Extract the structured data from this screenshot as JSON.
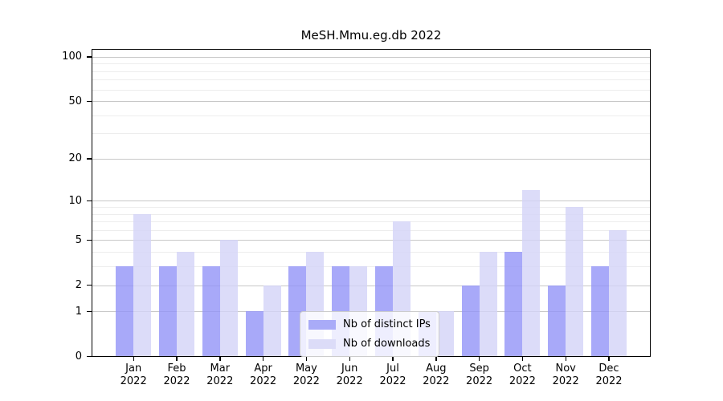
{
  "title": "MeSH.Mmu.eg.db 2022",
  "chart_data": {
    "type": "bar",
    "title": "MeSH.Mmu.eg.db 2022",
    "yscale": "log1p",
    "ylim": [
      0,
      113
    ],
    "grid": "on",
    "legend_position": "lower center inside plot",
    "categories": [
      "Jan",
      "Feb",
      "Mar",
      "Apr",
      "May",
      "Jun",
      "Jul",
      "Aug",
      "Sep",
      "Oct",
      "Nov",
      "Dec"
    ],
    "year_label": "2022",
    "yticks": [
      0,
      1,
      2,
      5,
      10,
      20,
      50,
      100
    ],
    "yminorticks": [
      3,
      4,
      6,
      7,
      8,
      9,
      30,
      40,
      60,
      70,
      80,
      90
    ],
    "series": [
      {
        "name": "Nb of distinct IPs",
        "key": "distinct-ips",
        "values": [
          3,
          3,
          3,
          1,
          3,
          3,
          3,
          1,
          2,
          4,
          2,
          3
        ],
        "fill": "rgba(146,148,247,0.8)",
        "swatch": "#a9abf8"
      },
      {
        "name": "Nb of downloads",
        "key": "downloads",
        "values": [
          8,
          4,
          5,
          2,
          4,
          3,
          7,
          1,
          4,
          12,
          9,
          6
        ],
        "fill": "rgba(211,211,247,0.8)",
        "swatch": "#dcdcf8"
      }
    ]
  },
  "colors": {
    "grid_major": "#c8c8c8",
    "grid_minor": "#ededed",
    "spine": "#000000",
    "background": "#ffffff"
  }
}
